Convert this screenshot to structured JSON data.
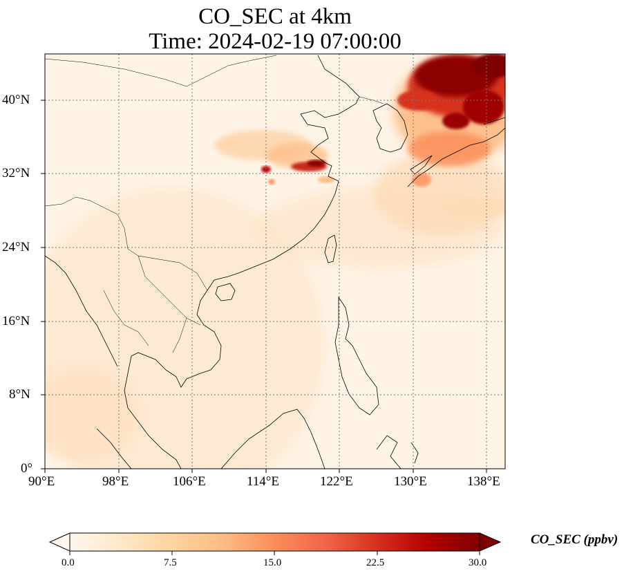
{
  "title": {
    "line1": "CO_SEC at 4km",
    "line2": "Time: 2024-02-19 07:00:00"
  },
  "map": {
    "lon_range": [
      90,
      140
    ],
    "lat_range": [
      0,
      45
    ],
    "lon_ticks": [
      "90°E",
      "98°E",
      "106°E",
      "114°E",
      "122°E",
      "130°E",
      "138°E"
    ],
    "lat_ticks": [
      "0°",
      "8°N",
      "16°N",
      "24°N",
      "32°N",
      "40°N"
    ],
    "gridlines": "dotted",
    "colormap": "OrRd",
    "colormap_colors": [
      "#fff7ec",
      "#fee8c8",
      "#fdd49e",
      "#fdbb84",
      "#fc8d59",
      "#ef6548",
      "#d7301f",
      "#b30000",
      "#7f0000"
    ],
    "plumes": [
      {
        "region": "Northeast Asia / Korea / Japan Sea",
        "level": "very high (>30 ppbv)"
      },
      {
        "region": "Central-east China (near 32°N, 114–120°E)",
        "level": "high (20–30 ppbv)"
      },
      {
        "region": "South China Sea background",
        "level": "low (0–5 ppbv)"
      }
    ]
  },
  "colorbar": {
    "label": "CO_SEC (ppbv)",
    "min": 0.0,
    "max": 30.0,
    "extend": "both",
    "ticks": [
      "0.0",
      "7.5",
      "15.0",
      "22.5",
      "30.0"
    ]
  }
}
